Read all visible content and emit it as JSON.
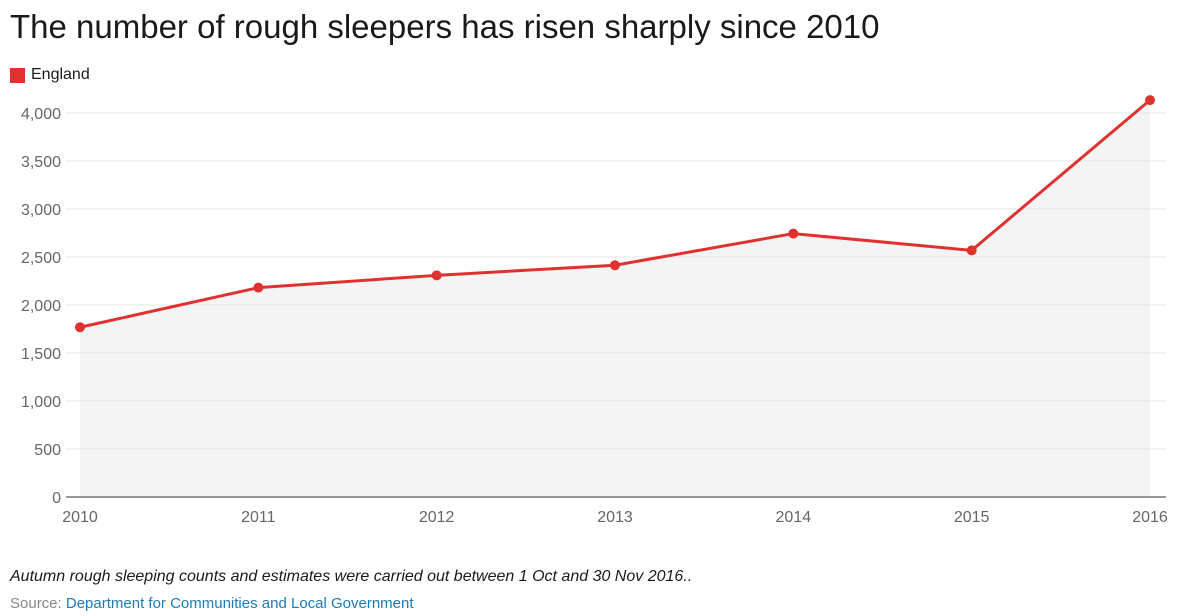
{
  "chart_data": {
    "type": "line",
    "title": "The number of rough sleepers has risen sharply since 2010",
    "x": [
      "2010",
      "2011",
      "2012",
      "2013",
      "2014",
      "2015",
      "2016"
    ],
    "series": [
      {
        "name": "England",
        "values": [
          1768,
          2181,
          2309,
          2414,
          2744,
          2569,
          4134
        ]
      }
    ],
    "ylim": [
      0,
      4000
    ],
    "yticks": [
      0,
      500,
      1000,
      1500,
      2000,
      2500,
      3000,
      3500,
      4000
    ],
    "ytick_labels": [
      "0",
      "500",
      "1,000",
      "1,500",
      "2,000",
      "2,500",
      "3,000",
      "3,500",
      "4,000"
    ],
    "grid": true,
    "legend": "top-left",
    "area_fill": true
  },
  "colors": {
    "series": "#e03131",
    "area": "#f4f4f4",
    "grid": "#e4e4e4",
    "axis": "#333333"
  },
  "footer": {
    "note": "Autumn rough sleeping counts and estimates were carried out between 1 Oct and 30 Nov 2016..",
    "source_prefix": "Source: ",
    "source_link": "Department for Communities and Local Government"
  }
}
